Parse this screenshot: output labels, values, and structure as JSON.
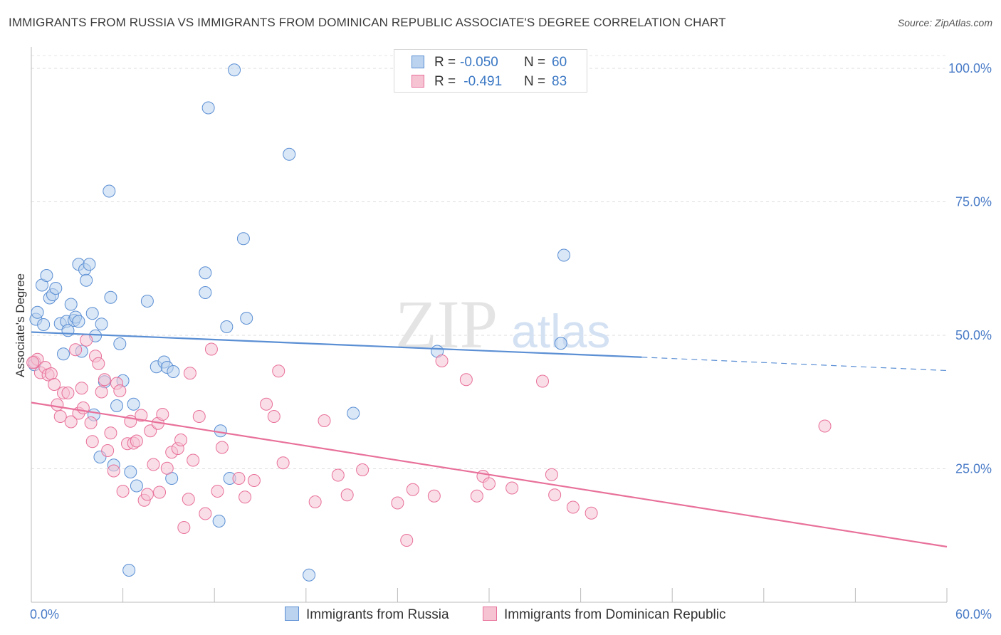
{
  "title": "IMMIGRANTS FROM RUSSIA VS IMMIGRANTS FROM DOMINICAN REPUBLIC ASSOCIATE'S DEGREE CORRELATION CHART",
  "source": "Source: ZipAtlas.com",
  "watermark": {
    "zip": "ZIP",
    "atlas": "atlas"
  },
  "colors": {
    "blue": "#5b8fd4",
    "blue_fill": "#bcd3ef",
    "pink": "#e8709a",
    "pink_fill": "#f6c3d3",
    "axis_label": "#4a7cc7"
  },
  "legend_top": [
    {
      "r_label": "R =",
      "r_value": "-0.050",
      "n_label": "N =",
      "n_value": "60"
    },
    {
      "r_label": "R =",
      "r_value": " -0.491",
      "n_label": "N =",
      "n_value": "83"
    }
  ],
  "legend_bottom": [
    {
      "label": "Immigrants from Russia"
    },
    {
      "label": "Immigrants from Dominican Republic"
    }
  ],
  "chart_data": {
    "type": "scatter",
    "title": "IMMIGRANTS FROM RUSSIA VS IMMIGRANTS FROM DOMINICAN REPUBLIC ASSOCIATE'S DEGREE CORRELATION CHART",
    "xlabel": "",
    "ylabel": "Associate's Degree",
    "xlim": [
      0,
      60
    ],
    "ylim": [
      0,
      104
    ],
    "x_tick_labels": [
      "0.0%",
      "60.0%"
    ],
    "y_ticks": [
      25,
      50,
      75,
      100
    ],
    "y_tick_labels": [
      "25.0%",
      "50.0%",
      "75.0%",
      "100.0%"
    ],
    "grid": true,
    "legend_position": "top-center",
    "series": [
      {
        "name": "Immigrants from Russia",
        "color": "#5b8fd4",
        "trend": {
          "x": [
            0,
            40
          ],
          "y": [
            50.6,
            45.9
          ],
          "dashed_to_x": 60,
          "dashed_y": 43.4
        },
        "points": [
          [
            0.2,
            44.5
          ],
          [
            0.3,
            53.0
          ],
          [
            0.4,
            54.3
          ],
          [
            0.7,
            59.4
          ],
          [
            0.8,
            52.0
          ],
          [
            1.0,
            61.2
          ],
          [
            1.2,
            57.0
          ],
          [
            1.4,
            57.6
          ],
          [
            1.6,
            58.8
          ],
          [
            1.9,
            52.2
          ],
          [
            2.1,
            46.5
          ],
          [
            2.3,
            52.6
          ],
          [
            2.4,
            50.9
          ],
          [
            2.6,
            55.8
          ],
          [
            2.8,
            52.8
          ],
          [
            2.9,
            53.4
          ],
          [
            3.1,
            52.6
          ],
          [
            3.1,
            63.3
          ],
          [
            3.3,
            47.0
          ],
          [
            3.5,
            62.3
          ],
          [
            3.6,
            60.3
          ],
          [
            3.8,
            63.3
          ],
          [
            4.0,
            54.1
          ],
          [
            4.1,
            35.1
          ],
          [
            4.2,
            49.9
          ],
          [
            4.5,
            27.2
          ],
          [
            4.6,
            52.1
          ],
          [
            4.8,
            41.3
          ],
          [
            5.1,
            77.0
          ],
          [
            5.2,
            57.1
          ],
          [
            5.4,
            25.7
          ],
          [
            5.6,
            36.8
          ],
          [
            5.8,
            48.4
          ],
          [
            6.0,
            41.5
          ],
          [
            6.4,
            6.0
          ],
          [
            6.5,
            24.4
          ],
          [
            6.7,
            37.1
          ],
          [
            6.9,
            21.8
          ],
          [
            7.6,
            56.4
          ],
          [
            8.2,
            44.1
          ],
          [
            8.7,
            45.0
          ],
          [
            8.9,
            44.0
          ],
          [
            9.2,
            23.2
          ],
          [
            9.3,
            43.2
          ],
          [
            11.4,
            58.0
          ],
          [
            11.4,
            61.7
          ],
          [
            11.6,
            92.6
          ],
          [
            12.4,
            32.1
          ],
          [
            12.3,
            15.2
          ],
          [
            12.8,
            51.6
          ],
          [
            13.0,
            23.2
          ],
          [
            13.3,
            99.7
          ],
          [
            13.9,
            68.1
          ],
          [
            14.1,
            53.2
          ],
          [
            16.9,
            83.9
          ],
          [
            18.2,
            5.1
          ],
          [
            21.1,
            35.4
          ],
          [
            26.6,
            47.0
          ],
          [
            34.7,
            48.5
          ],
          [
            34.9,
            65.0
          ]
        ]
      },
      {
        "name": "Immigrants from Dominican Republic",
        "color": "#e8709a",
        "trend": {
          "x": [
            0,
            60
          ],
          "y": [
            37.4,
            10.4
          ]
        },
        "points": [
          [
            0.2,
            45.0
          ],
          [
            0.4,
            45.5
          ],
          [
            0.6,
            43.0
          ],
          [
            0.9,
            44.0
          ],
          [
            1.1,
            42.6
          ],
          [
            1.3,
            42.8
          ],
          [
            1.5,
            40.8
          ],
          [
            1.7,
            37.0
          ],
          [
            1.9,
            34.8
          ],
          [
            2.1,
            39.2
          ],
          [
            2.4,
            39.2
          ],
          [
            2.6,
            33.8
          ],
          [
            2.9,
            47.3
          ],
          [
            3.1,
            35.4
          ],
          [
            3.3,
            40.1
          ],
          [
            3.4,
            36.4
          ],
          [
            3.6,
            49.1
          ],
          [
            3.9,
            33.6
          ],
          [
            4.0,
            30.1
          ],
          [
            4.2,
            46.1
          ],
          [
            4.4,
            44.7
          ],
          [
            4.6,
            39.4
          ],
          [
            4.8,
            41.7
          ],
          [
            5.0,
            28.4
          ],
          [
            5.2,
            31.7
          ],
          [
            5.4,
            24.6
          ],
          [
            5.6,
            41.0
          ],
          [
            5.8,
            39.6
          ],
          [
            6.0,
            20.8
          ],
          [
            6.3,
            29.7
          ],
          [
            6.5,
            33.9
          ],
          [
            6.7,
            29.8
          ],
          [
            6.9,
            30.2
          ],
          [
            7.2,
            35.0
          ],
          [
            7.4,
            19.1
          ],
          [
            7.6,
            20.2
          ],
          [
            7.8,
            32.1
          ],
          [
            8.0,
            25.8
          ],
          [
            8.3,
            33.5
          ],
          [
            8.4,
            20.6
          ],
          [
            8.6,
            35.2
          ],
          [
            8.9,
            25.1
          ],
          [
            9.2,
            28.1
          ],
          [
            9.6,
            28.8
          ],
          [
            9.8,
            30.4
          ],
          [
            10.0,
            14.0
          ],
          [
            10.3,
            19.3
          ],
          [
            10.4,
            42.9
          ],
          [
            10.6,
            26.6
          ],
          [
            11.0,
            34.8
          ],
          [
            11.4,
            16.6
          ],
          [
            11.8,
            47.4
          ],
          [
            12.2,
            20.8
          ],
          [
            12.5,
            29.0
          ],
          [
            13.6,
            23.2
          ],
          [
            14.0,
            19.7
          ],
          [
            14.6,
            22.8
          ],
          [
            15.4,
            37.1
          ],
          [
            15.9,
            34.8
          ],
          [
            16.2,
            43.3
          ],
          [
            16.5,
            26.1
          ],
          [
            18.6,
            18.8
          ],
          [
            19.2,
            34.0
          ],
          [
            20.1,
            23.8
          ],
          [
            20.7,
            20.1
          ],
          [
            21.7,
            24.8
          ],
          [
            24.0,
            18.6
          ],
          [
            24.6,
            11.6
          ],
          [
            25.0,
            21.1
          ],
          [
            26.4,
            19.9
          ],
          [
            26.9,
            45.2
          ],
          [
            28.5,
            41.7
          ],
          [
            29.2,
            19.9
          ],
          [
            29.6,
            23.6
          ],
          [
            30.0,
            22.2
          ],
          [
            31.5,
            21.4
          ],
          [
            33.5,
            41.4
          ],
          [
            34.1,
            23.9
          ],
          [
            34.3,
            20.1
          ],
          [
            35.5,
            17.8
          ],
          [
            36.7,
            16.7
          ],
          [
            52.0,
            33.0
          ],
          [
            0.1,
            44.9
          ]
        ]
      }
    ]
  }
}
